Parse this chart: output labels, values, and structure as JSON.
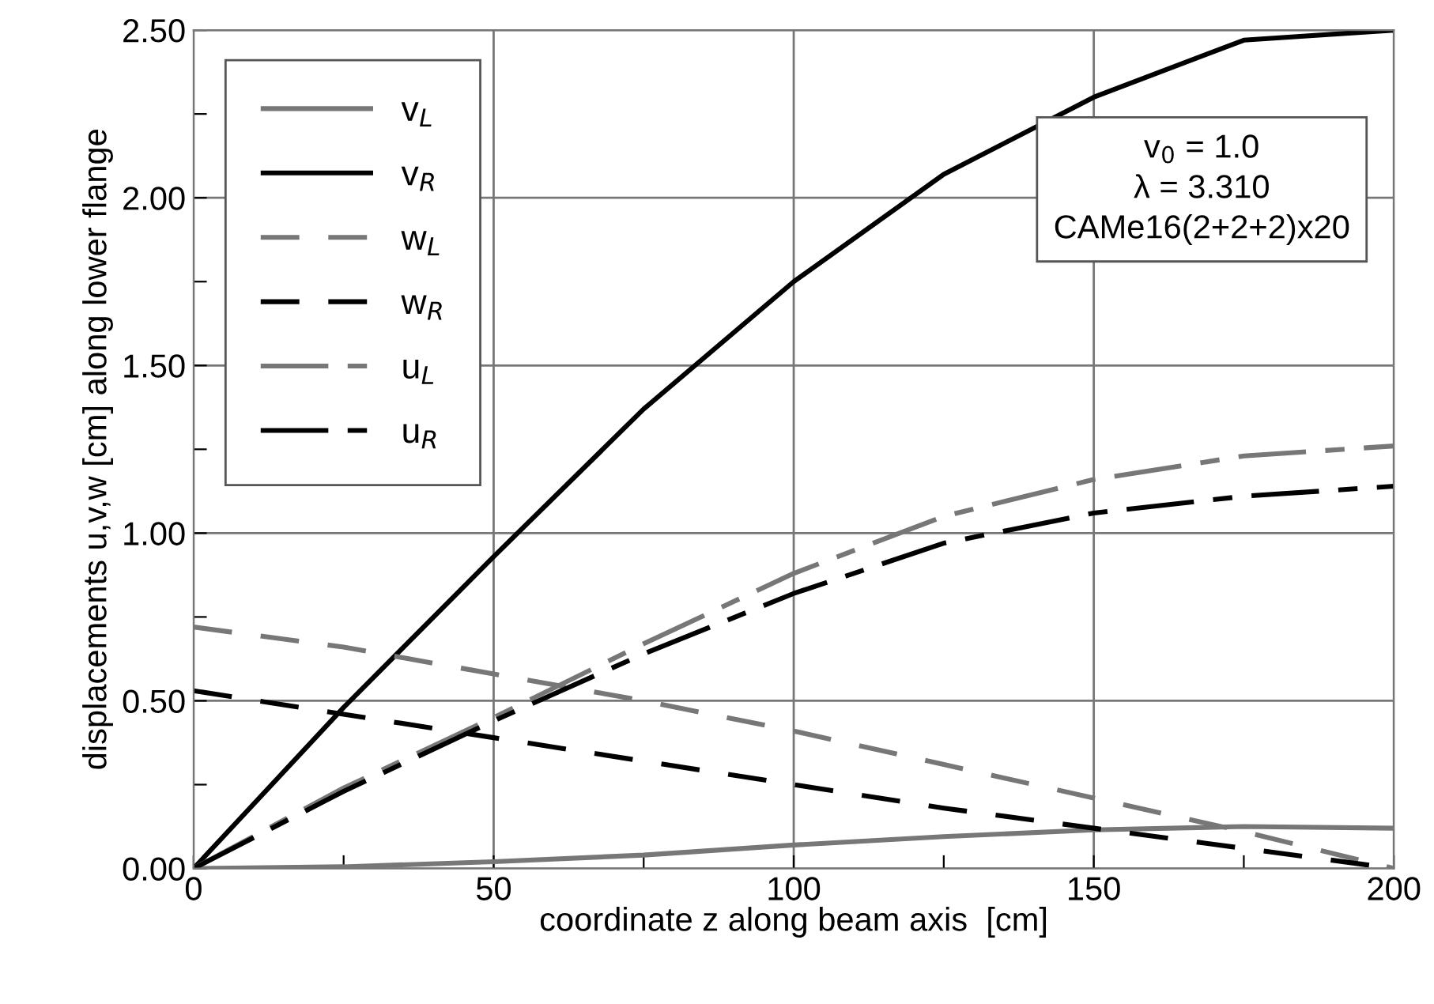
{
  "chart_data": {
    "type": "line",
    "xlabel": "coordinate z along beam axis  [cm]",
    "ylabel": "displacements u,v,w [cm] along lower flange",
    "x": [
      0,
      25,
      50,
      75,
      100,
      125,
      150,
      175,
      200
    ],
    "xlim": [
      0,
      200
    ],
    "ylim": [
      0,
      2.5
    ],
    "xticks": [
      0,
      {
        "value": 25,
        "label": null
      },
      50,
      {
        "value": 75,
        "label": null
      },
      100,
      {
        "value": 125,
        "label": null
      },
      150,
      {
        "value": 175,
        "label": null
      },
      200
    ],
    "yticks": [
      {
        "value": 0,
        "label": "0.00"
      },
      {
        "value": 0.25,
        "label": null
      },
      {
        "value": 0.5,
        "label": "0.50"
      },
      {
        "value": 0.75,
        "label": null
      },
      {
        "value": 1.0,
        "label": "1.00"
      },
      {
        "value": 1.25,
        "label": null
      },
      {
        "value": 1.5,
        "label": "1.50"
      },
      {
        "value": 1.75,
        "label": null
      },
      {
        "value": 2.0,
        "label": "2.00"
      },
      {
        "value": 2.25,
        "label": null
      },
      {
        "value": 2.5,
        "label": "2.50"
      }
    ],
    "grid": true,
    "legend": "top left",
    "marker": "none",
    "series": [
      {
        "name": "v$_{L}$",
        "color": "#777777",
        "line_style": "solid",
        "values": [
          0,
          0.005,
          0.02,
          0.04,
          0.07,
          0.095,
          0.115,
          0.125,
          0.12
        ]
      },
      {
        "name": "v$_{R}$",
        "color": "#000000",
        "line_style": "solid",
        "values": [
          0,
          0.48,
          0.93,
          1.37,
          1.75,
          2.07,
          2.3,
          2.47,
          2.5
        ]
      },
      {
        "name": "w$_{L}$",
        "color": "#777777",
        "line_style": "dashed",
        "values": [
          0.72,
          0.66,
          0.58,
          0.5,
          0.41,
          0.31,
          0.21,
          0.11,
          0
        ]
      },
      {
        "name": "w$_{R}$",
        "color": "#000000",
        "line_style": "dashed",
        "values": [
          0.53,
          0.46,
          0.39,
          0.32,
          0.25,
          0.18,
          0.12,
          0.06,
          0
        ]
      },
      {
        "name": "u$_{L}$",
        "color": "#777777",
        "line_style": "dashdot",
        "values": [
          0,
          0.24,
          0.45,
          0.67,
          0.88,
          1.05,
          1.16,
          1.23,
          1.26
        ]
      },
      {
        "name": "u$_{R}$",
        "color": "#000000",
        "line_style": "dashdot",
        "values": [
          0,
          0.23,
          0.44,
          0.64,
          0.82,
          0.97,
          1.06,
          1.11,
          1.14
        ]
      }
    ],
    "annotations": [
      "v$_{0}$ = 1.0",
      "λ = 3.310",
      "CAMe16(2+2+2)x20"
    ]
  }
}
